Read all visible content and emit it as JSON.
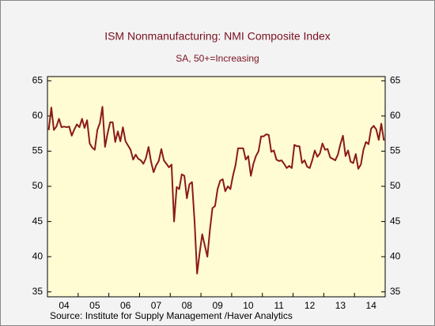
{
  "chart_data": {
    "type": "line",
    "title": "ISM Nonmanufacturing: NMI Composite Index",
    "subtitle": "SA, 50+=Increasing",
    "source": "Source:  Institute for Supply Management /Haver Analytics",
    "categories": [
      null,
      null,
      null,
      null,
      null,
      null,
      "04",
      null,
      null,
      null,
      null,
      null,
      null,
      null,
      null,
      null,
      null,
      null,
      "05",
      null,
      null,
      null,
      null,
      null,
      null,
      null,
      null,
      null,
      null,
      null,
      "06",
      null,
      null,
      null,
      null,
      null,
      null,
      null,
      null,
      null,
      null,
      null,
      "07",
      null,
      null,
      null,
      null,
      null,
      null,
      null,
      null,
      null,
      null,
      null,
      "08",
      null,
      null,
      null,
      null,
      null,
      null,
      null,
      null,
      null,
      null,
      null,
      "09",
      null,
      null,
      null,
      null,
      null,
      null,
      null,
      null,
      null,
      null,
      null,
      "10",
      null,
      null,
      null,
      null,
      null,
      null,
      null,
      null,
      null,
      null,
      null,
      "11",
      null,
      null,
      null,
      null,
      null,
      null,
      null,
      null,
      null,
      null,
      null,
      "12",
      null,
      null,
      null,
      null,
      null,
      null,
      null,
      null,
      null,
      null,
      null,
      "13",
      null,
      null,
      null,
      null,
      null,
      null,
      null,
      null,
      null,
      null,
      null,
      "14",
      null,
      null,
      null,
      null,
      null
    ],
    "series": [
      {
        "name": "NMI Composite Index",
        "color": "#8b1a1a",
        "values": [
          58.0,
          61.2,
          58.0,
          58.5,
          59.6,
          58.4,
          58.5,
          58.4,
          58.5,
          57.2,
          58.1,
          58.8,
          58.4,
          59.6,
          58.3,
          59.4,
          56.1,
          55.5,
          55.2,
          58.0,
          59.0,
          61.3,
          55.6,
          57.5,
          59.1,
          59.1,
          56.3,
          57.8,
          56.4,
          58.4,
          56.4,
          55.8,
          55.2,
          53.8,
          54.5,
          53.9,
          53.7,
          53.2,
          54.0,
          55.6,
          53.5,
          52.0,
          53.0,
          53.6,
          55.3,
          53.7,
          53.2,
          52.7,
          53.1,
          45.0,
          49.9,
          49.6,
          51.7,
          51.5,
          48.3,
          50.3,
          50.6,
          45.0,
          37.6,
          40.6,
          43.2,
          41.6,
          40.0,
          43.8,
          46.9,
          47.2,
          49.6,
          50.8,
          51.0,
          49.3,
          50.0,
          49.6,
          51.5,
          53.0,
          55.4,
          55.4,
          55.4,
          53.8,
          54.3,
          51.5,
          53.2,
          54.3,
          55.0,
          57.1,
          57.1,
          57.4,
          57.3,
          54.9,
          55.1,
          53.8,
          53.6,
          53.7,
          53.2,
          52.6,
          52.9,
          52.6,
          55.9,
          55.7,
          55.7,
          53.3,
          53.7,
          52.8,
          52.6,
          53.7,
          55.1,
          54.2,
          54.7,
          56.1,
          55.2,
          55.3,
          54.1,
          53.9,
          53.7,
          54.5,
          56.0,
          57.2,
          54.3,
          55.1,
          53.5,
          53.3,
          54.6,
          52.5,
          53.1,
          55.2,
          56.3,
          56.0,
          58.2,
          58.6,
          58.1,
          56.6,
          58.9,
          56.5
        ]
      }
    ],
    "ylim": [
      34.3,
      65.6
    ],
    "yticks": [
      35,
      40,
      45,
      50,
      55,
      60,
      65
    ]
  }
}
